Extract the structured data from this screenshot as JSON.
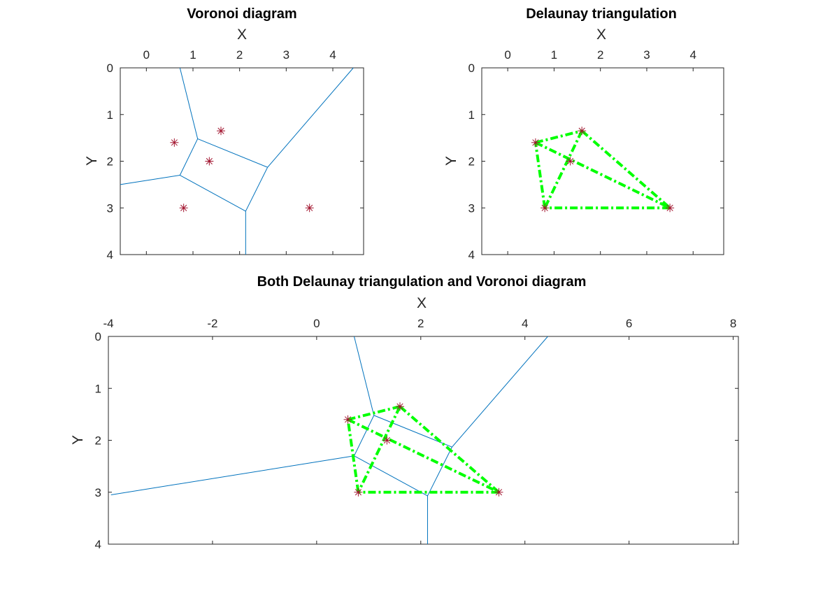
{
  "colors": {
    "voronoi_edge": "#0072BD",
    "delaunay_edge": "#00FF00",
    "point_marker": "#A2142F",
    "axes": "#262626"
  },
  "chart_data": [
    {
      "type": "scatter",
      "title": "Voronoi diagram",
      "xlabel": "X",
      "ylabel": "Y",
      "x_axis_location": "top",
      "y_direction": "reversed",
      "xlim": [
        -0.56,
        4.66
      ],
      "ylim": [
        0,
        4
      ],
      "x_ticks": [
        "0",
        "1",
        "2",
        "3",
        "4"
      ],
      "y_ticks": [
        "0",
        "1",
        "2",
        "3",
        "4"
      ],
      "points": [
        [
          0.6,
          1.6
        ],
        [
          1.6,
          1.35
        ],
        [
          1.35,
          2.0
        ],
        [
          0.8,
          3.0
        ],
        [
          3.5,
          3.0
        ]
      ],
      "voronoi_vertices": [
        [
          1.1,
          1.52
        ],
        [
          2.6,
          2.13
        ],
        [
          0.72,
          2.3
        ],
        [
          2.13,
          3.07
        ]
      ],
      "voronoi_edges": [
        [
          [
            1.1,
            1.52
          ],
          [
            0.72,
            0.0
          ]
        ],
        [
          [
            1.1,
            1.52
          ],
          [
            2.6,
            2.13
          ]
        ],
        [
          [
            1.1,
            1.52
          ],
          [
            0.72,
            2.3
          ]
        ],
        [
          [
            2.6,
            2.13
          ],
          [
            4.44,
            0.0
          ]
        ],
        [
          [
            2.6,
            2.13
          ],
          [
            2.13,
            3.07
          ]
        ],
        [
          [
            0.72,
            2.3
          ],
          [
            2.13,
            3.07
          ]
        ],
        [
          [
            0.72,
            2.3
          ],
          [
            -0.56,
            2.5
          ]
        ],
        [
          [
            2.13,
            3.07
          ],
          [
            2.13,
            4.0
          ]
        ]
      ]
    },
    {
      "type": "line",
      "title": "Delaunay triangulation",
      "xlabel": "X",
      "ylabel": "Y",
      "x_axis_location": "top",
      "y_direction": "reversed",
      "xlim": [
        -0.56,
        4.66
      ],
      "ylim": [
        0,
        4
      ],
      "x_ticks": [
        "0",
        "1",
        "2",
        "3",
        "4"
      ],
      "y_ticks": [
        "0",
        "1",
        "2",
        "3",
        "4"
      ],
      "points": [
        [
          0.6,
          1.6
        ],
        [
          1.6,
          1.35
        ],
        [
          1.35,
          2.0
        ],
        [
          0.8,
          3.0
        ],
        [
          3.5,
          3.0
        ]
      ],
      "delaunay_edges": [
        [
          [
            0.6,
            1.6
          ],
          [
            1.6,
            1.35
          ]
        ],
        [
          [
            1.6,
            1.35
          ],
          [
            3.5,
            3.0
          ]
        ],
        [
          [
            3.5,
            3.0
          ],
          [
            0.8,
            3.0
          ]
        ],
        [
          [
            0.8,
            3.0
          ],
          [
            0.6,
            1.6
          ]
        ],
        [
          [
            0.6,
            1.6
          ],
          [
            3.5,
            3.0
          ]
        ],
        [
          [
            1.6,
            1.35
          ],
          [
            0.8,
            3.0
          ]
        ]
      ]
    },
    {
      "type": "line",
      "title": "Both Delaunay triangulation and Voronoi diagram",
      "xlabel": "X",
      "ylabel": "Y",
      "x_axis_location": "top",
      "y_direction": "reversed",
      "xlim": [
        -4,
        8.1
      ],
      "ylim": [
        0,
        4
      ],
      "x_ticks": [
        "-4",
        "-2",
        "0",
        "2",
        "4",
        "6",
        "8"
      ],
      "y_ticks": [
        "0",
        "1",
        "2",
        "3",
        "4"
      ],
      "points": [
        [
          0.6,
          1.6
        ],
        [
          1.6,
          1.35
        ],
        [
          1.35,
          2.0
        ],
        [
          0.8,
          3.0
        ],
        [
          3.5,
          3.0
        ]
      ],
      "voronoi_edges": [
        [
          [
            1.1,
            1.52
          ],
          [
            0.72,
            0.0
          ]
        ],
        [
          [
            1.1,
            1.52
          ],
          [
            2.6,
            2.13
          ]
        ],
        [
          [
            1.1,
            1.52
          ],
          [
            0.72,
            2.3
          ]
        ],
        [
          [
            2.6,
            2.13
          ],
          [
            4.44,
            0.0
          ]
        ],
        [
          [
            2.6,
            2.13
          ],
          [
            2.13,
            3.07
          ]
        ],
        [
          [
            0.72,
            2.3
          ],
          [
            2.13,
            3.07
          ]
        ],
        [
          [
            0.72,
            2.3
          ],
          [
            -3.95,
            3.05
          ]
        ],
        [
          [
            2.13,
            3.07
          ],
          [
            2.13,
            4.0
          ]
        ]
      ],
      "delaunay_edges": [
        [
          [
            0.6,
            1.6
          ],
          [
            1.6,
            1.35
          ]
        ],
        [
          [
            1.6,
            1.35
          ],
          [
            3.5,
            3.0
          ]
        ],
        [
          [
            3.5,
            3.0
          ],
          [
            0.8,
            3.0
          ]
        ],
        [
          [
            0.8,
            3.0
          ],
          [
            0.6,
            1.6
          ]
        ],
        [
          [
            0.6,
            1.6
          ],
          [
            3.5,
            3.0
          ]
        ],
        [
          [
            1.6,
            1.35
          ],
          [
            0.8,
            3.0
          ]
        ]
      ]
    }
  ]
}
